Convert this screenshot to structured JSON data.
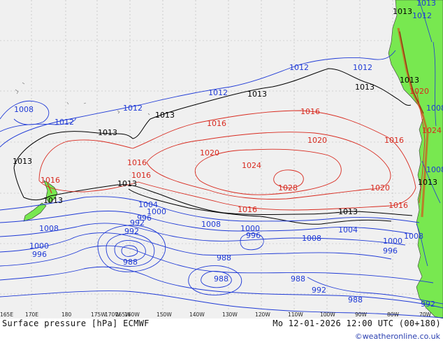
{
  "map": {
    "contour_labels": {
      "blue": [
        "1012",
        "1012",
        "1012",
        "1008",
        "1012",
        "1012",
        "1008",
        "1008",
        "1008",
        "1004",
        "1000",
        "1000",
        "996",
        "996",
        "1000",
        "996",
        "992",
        "992",
        "988",
        "988",
        "988",
        "988",
        "992",
        "988",
        "992",
        "1000",
        "996",
        "1004",
        "1008",
        "1008",
        "1008",
        "1013",
        "1012"
      ],
      "black": [
        "1013",
        "1013",
        "1013",
        "1013",
        "1013",
        "1013",
        "1013",
        "1013",
        "1013",
        "1013",
        "1013"
      ],
      "red": [
        "1016",
        "1016",
        "1016",
        "1016",
        "1016",
        "1016",
        "1016",
        "1020",
        "1020",
        "1020",
        "1024",
        "1028",
        "1020",
        "1016",
        "1024"
      ]
    },
    "longitude_ticks": [
      "165E",
      "170E",
      "180",
      "175W",
      "170W",
      "165W",
      "160W",
      "150W",
      "140W",
      "130W",
      "120W",
      "110W",
      "100W",
      "90W",
      "80W",
      "70W"
    ]
  },
  "footer": {
    "title": "Surface pressure [hPa] ECMWF",
    "datetime": "Mo 12-01-2026 12:00 UTC (00+180)",
    "credit": "©weatheronline.co.uk"
  },
  "colors": {
    "ocean": "#f0f0f0",
    "land": "#78e850",
    "high_isobar": "#d82a1f",
    "low_isobar": "#1f3ad6",
    "standard_isobar": "#000000"
  }
}
